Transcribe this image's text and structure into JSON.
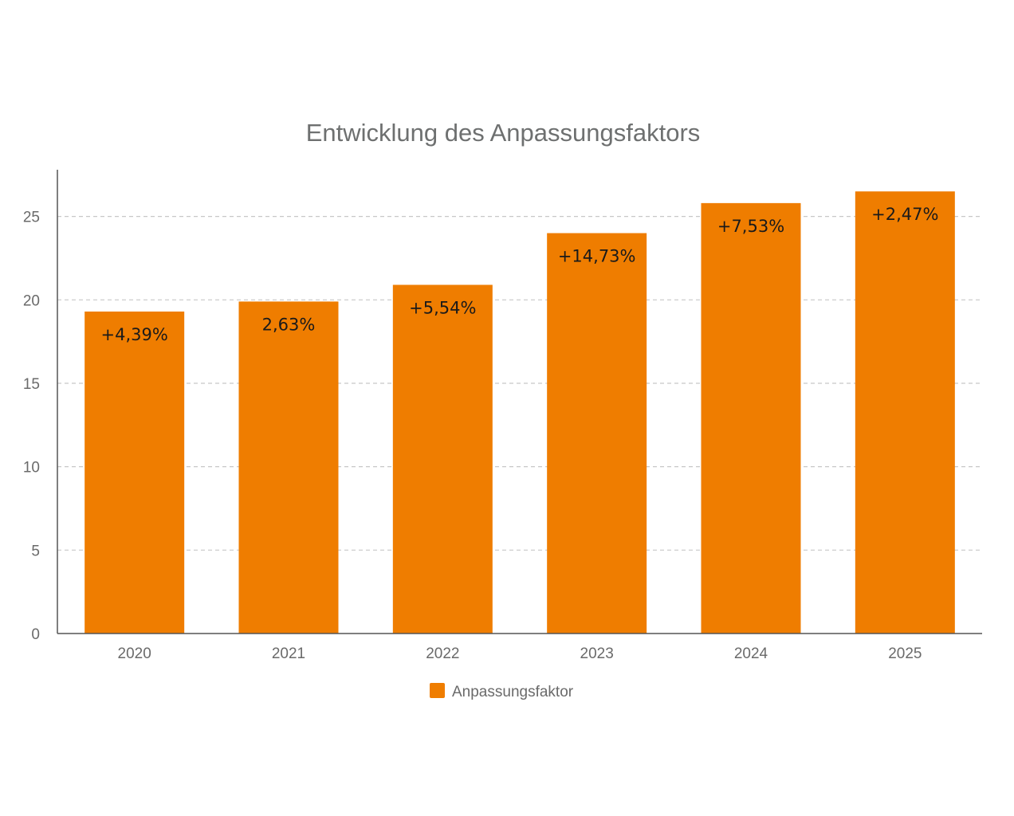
{
  "chart_data": {
    "type": "bar",
    "title": "Entwicklung des Anpassungsfaktors",
    "xlabel": "",
    "ylabel": "",
    "categories": [
      "2020",
      "2021",
      "2022",
      "2023",
      "2024",
      "2025"
    ],
    "series": [
      {
        "name": "Anpassungsfaktor",
        "values": [
          19.3,
          19.9,
          20.9,
          24.0,
          25.8,
          26.5
        ],
        "labels": [
          "+4,39%",
          "2,63%",
          "+5,54%",
          "+14,73%",
          "+7,53%",
          "+2,47%"
        ],
        "color": "#ef7d00"
      }
    ],
    "ylim": [
      0,
      27.8
    ],
    "yticks": [
      "0",
      "5",
      "10",
      "15",
      "20",
      "25"
    ],
    "grid": true,
    "legend_position": "bottom"
  }
}
